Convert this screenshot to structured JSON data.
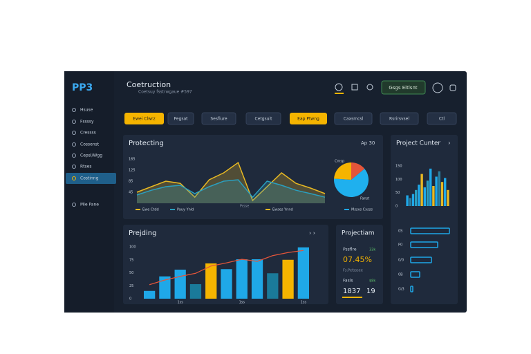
{
  "header": {
    "logo": "PP3",
    "title": "Coetruction",
    "subtitle": "Coetsuy fsstrwgaue #597",
    "button": "Gsgs Eitlsnt"
  },
  "sidebar": {
    "items": [
      "Hsuse",
      "Fssssy",
      "Cressss",
      "Cossenst",
      "Cepsl/Wgg",
      "Rtses",
      "Costinng",
      "Mie Pane"
    ],
    "active": 6
  },
  "tabs": {
    "items": [
      "Ewei Clwrz",
      "Pegsat",
      "Sesfiure",
      "Cetgsuit",
      "Eap Ptwng",
      "Caxsmcsl",
      "Rsrirsvsel",
      "Ctl"
    ],
    "highlighted": [
      0,
      4
    ]
  },
  "trend": {
    "title": "Protecting",
    "control": "Ap  30",
    "xlabel": "Prsse",
    "ylim": [
      5,
      165
    ],
    "yticks": [
      165,
      125,
      85,
      45
    ],
    "series": [
      {
        "name": "Ewe Ctdd",
        "color": "#e8b923",
        "values": [
          45,
          65,
          85,
          77,
          27,
          90,
          115,
          152,
          15,
          65,
          115,
          77,
          60,
          40
        ]
      },
      {
        "name": "Pauy Ynld",
        "color": "#2a9fbf",
        "values": [
          35,
          52,
          65,
          70,
          40,
          65,
          85,
          90,
          27,
          85,
          70,
          52,
          40,
          27
        ]
      }
    ],
    "legend_extra": [
      {
        "name": "Ewses Ynnd",
        "color": "#e8b923"
      },
      {
        "name": "Mssxs Cxsss",
        "color": "#1fa8e8"
      }
    ],
    "pie": {
      "label_top": "Cmsp",
      "label_bottom": "Fanst",
      "values": [
        14,
        62,
        24
      ],
      "colors": [
        "#e4553a",
        "#1fb0ee",
        "#f5b400"
      ]
    }
  },
  "projection": {
    "title": "Project Cunter",
    "ylim": [
      0,
      150
    ],
    "yticks": [
      0,
      50,
      100,
      150
    ],
    "values": [
      40,
      30,
      45,
      60,
      80,
      120,
      70,
      95,
      140,
      75,
      110,
      130,
      90,
      105,
      60
    ],
    "colors": [
      "#1fa8e8",
      "#2a7fa0",
      "#1fa8e8",
      "#2a9fbf",
      "#1fa8e8",
      "#e8b923",
      "#1fa8e8",
      "#2a9fbf",
      "#1fa8e8",
      "#e8b923",
      "#1fa8e8",
      "#2a7fa0",
      "#e8b923",
      "#1fa8e8",
      "#e8b923"
    ],
    "hbars": {
      "xlim": [
        0,
        60
      ],
      "labels": [
        "0S",
        "P0",
        "0/0",
        "0B",
        "G/3"
      ],
      "values": [
        56,
        39,
        30,
        13,
        3
      ],
      "color": "#1fa8e8"
    }
  },
  "pending": {
    "title": "Prejding",
    "ylim": [
      0,
      100
    ],
    "yticks": [
      100,
      75,
      50,
      25,
      0
    ],
    "categories": [
      null,
      null,
      "1ss",
      null,
      null,
      null,
      "1ss",
      null,
      null,
      null,
      "1ss"
    ],
    "values": [
      15,
      43,
      56,
      28,
      68,
      57,
      76,
      76,
      49,
      75,
      99
    ],
    "colors": [
      "#1fa8e8",
      "#1fa8e8",
      "#1fa8e8",
      "#1a7a9a",
      "#f5b400",
      "#1fa8e8",
      "#1fa8e8",
      "#1fa8e8",
      "#1a7a9a",
      "#f5b400",
      "#1fa8e8"
    ],
    "line": {
      "color": "#e4553a",
      "values": [
        27,
        36,
        43,
        49,
        63,
        69,
        76,
        72,
        83,
        89,
        93
      ]
    }
  },
  "summary": {
    "title": "Projectiam",
    "label1": "Pssflre",
    "badge1": "33k",
    "value1": "07.45%",
    "note": "Fs:Pefsssee",
    "label2": "Fasis",
    "badge2": "$8k",
    "value2": "1837",
    "value3": "19"
  }
}
